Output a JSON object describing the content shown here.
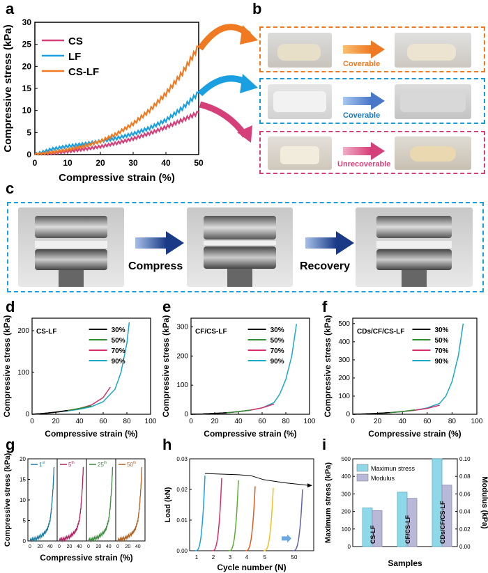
{
  "panel_labels": {
    "a": "a",
    "b": "b",
    "c": "c",
    "d": "d",
    "e": "e",
    "f": "f",
    "g": "g",
    "h": "h",
    "i": "i"
  },
  "panel_b": {
    "rows": [
      {
        "label": "Coverable",
        "color": "#f07a22"
      },
      {
        "label": "Coverable",
        "color": "#1a9ad6"
      },
      {
        "label": "Unrecoverable",
        "color": "#d6407a"
      }
    ]
  },
  "panel_c": {
    "step1": "Compress",
    "step2": "Recovery",
    "border": "#1aa0e0"
  },
  "colors": {
    "CS": "#d6407a",
    "LF": "#1aa0e0",
    "CS-LF": "#f07a22",
    "s30": "#000000",
    "s50": "#2e8b2e",
    "s70": "#d6306a",
    "s90": "#1aa8c8"
  },
  "chart_data": [
    {
      "id": "a",
      "type": "line",
      "xlabel": "Compressive strain (%)",
      "ylabel": "Compressive stress (kPa)",
      "xlim": [
        0,
        50
      ],
      "ylim": [
        0,
        30
      ],
      "xticks": [
        "0",
        "10",
        "20",
        "30",
        "40",
        "50"
      ],
      "yticks": [
        "0",
        "5",
        "10",
        "15",
        "20",
        "25",
        "30"
      ],
      "series": [
        {
          "name": "CS",
          "color": "#d6407a",
          "x": [
            0,
            5,
            10,
            15,
            20,
            25,
            30,
            35,
            40,
            45,
            50
          ],
          "y": [
            0,
            0.3,
            0.7,
            1.2,
            1.8,
            2.6,
            3.6,
            4.8,
            6.2,
            7.8,
            9.5
          ]
        },
        {
          "name": "LF",
          "color": "#1aa0e0",
          "x": [
            0,
            5,
            10,
            15,
            20,
            25,
            30,
            35,
            40,
            45,
            50
          ],
          "y": [
            0,
            1.2,
            1.9,
            2.4,
            3.0,
            3.7,
            4.7,
            6.0,
            7.8,
            10.5,
            14
          ]
        },
        {
          "name": "CS-LF",
          "color": "#f07a22",
          "x": [
            0,
            5,
            10,
            15,
            20,
            25,
            30,
            35,
            40,
            45,
            50
          ],
          "y": [
            0,
            0.5,
            1.1,
            1.9,
            3.0,
            4.7,
            7.0,
            10.0,
            13.8,
            18.5,
            24.5
          ]
        }
      ]
    },
    {
      "id": "d",
      "type": "line",
      "title": "CS-LF",
      "xlabel": "Compressive strain (%)",
      "ylabel": "Compressive stress (kPa)",
      "xlim": [
        0,
        100
      ],
      "ylim": [
        0,
        230
      ],
      "xticks": [
        "0",
        "20",
        "40",
        "60",
        "80",
        "100"
      ],
      "yticks": [
        "0",
        "100",
        "200"
      ],
      "ytickvals": [
        0,
        100,
        200
      ],
      "series": [
        {
          "name": "30%",
          "color": "#000000",
          "x": [
            0,
            10,
            20,
            30
          ],
          "y": [
            0,
            2,
            5,
            9
          ]
        },
        {
          "name": "50%",
          "color": "#2e8b2e",
          "x": [
            0,
            10,
            20,
            30,
            40,
            50
          ],
          "y": [
            0,
            2,
            5,
            9,
            14,
            20
          ]
        },
        {
          "name": "70%",
          "color": "#d6306a",
          "x": [
            0,
            10,
            20,
            30,
            40,
            50,
            60,
            66
          ],
          "y": [
            0,
            2,
            5,
            9,
            14,
            22,
            40,
            65
          ]
        },
        {
          "name": "90%",
          "color": "#1aa8c8",
          "x": [
            0,
            10,
            20,
            30,
            40,
            50,
            60,
            70,
            75,
            80,
            82
          ],
          "y": [
            0,
            2,
            5,
            8,
            12,
            18,
            30,
            60,
            100,
            170,
            220
          ]
        }
      ]
    },
    {
      "id": "e",
      "type": "line",
      "title": "CF/CS-LF",
      "xlabel": "Compressive strain (%)",
      "ylabel": "Compressive stress (kPa)",
      "xlim": [
        0,
        100
      ],
      "ylim": [
        0,
        330
      ],
      "xticks": [
        "0",
        "20",
        "40",
        "60",
        "80",
        "100"
      ],
      "yticks": [
        "0",
        "100",
        "200",
        "300"
      ],
      "ytickvals": [
        0,
        100,
        200,
        300
      ],
      "series": [
        {
          "name": "30%",
          "color": "#000000",
          "x": [
            0,
            10,
            20,
            30
          ],
          "y": [
            0,
            1,
            3,
            5
          ]
        },
        {
          "name": "50%",
          "color": "#2e8b2e",
          "x": [
            0,
            10,
            20,
            30,
            40,
            50
          ],
          "y": [
            0,
            1,
            3,
            5,
            9,
            14
          ]
        },
        {
          "name": "70%",
          "color": "#d6306a",
          "x": [
            0,
            10,
            20,
            30,
            40,
            50,
            60,
            70
          ],
          "y": [
            0,
            1,
            3,
            5,
            9,
            14,
            22,
            35
          ]
        },
        {
          "name": "90%",
          "color": "#1aa8c8",
          "x": [
            0,
            10,
            20,
            30,
            40,
            50,
            60,
            70,
            75,
            80,
            85,
            89
          ],
          "y": [
            0,
            1,
            3,
            5,
            9,
            14,
            22,
            40,
            70,
            120,
            200,
            310
          ]
        }
      ]
    },
    {
      "id": "f",
      "type": "line",
      "title": "CDs/CF/CS-LF",
      "xlabel": "Compressive strain (%)",
      "ylabel": "Compressive stress (kPa)",
      "xlim": [
        0,
        100
      ],
      "ylim": [
        0,
        530
      ],
      "xticks": [
        "0",
        "20",
        "40",
        "60",
        "80",
        "100"
      ],
      "yticks": [
        "0",
        "100",
        "200",
        "300",
        "400",
        "500"
      ],
      "ytickvals": [
        0,
        100,
        200,
        300,
        400,
        500
      ],
      "series": [
        {
          "name": "30%",
          "color": "#000000",
          "x": [
            0,
            10,
            20,
            30
          ],
          "y": [
            0,
            2,
            5,
            9
          ]
        },
        {
          "name": "50%",
          "color": "#2e8b2e",
          "x": [
            0,
            10,
            20,
            30,
            40,
            50
          ],
          "y": [
            0,
            2,
            5,
            9,
            15,
            24
          ]
        },
        {
          "name": "70%",
          "color": "#d6306a",
          "x": [
            0,
            10,
            20,
            30,
            40,
            50,
            60,
            70
          ],
          "y": [
            0,
            2,
            5,
            9,
            15,
            22,
            32,
            50
          ]
        },
        {
          "name": "90%",
          "color": "#1aa8c8",
          "x": [
            0,
            10,
            20,
            30,
            40,
            50,
            60,
            70,
            75,
            80,
            85,
            89
          ],
          "y": [
            0,
            2,
            5,
            9,
            15,
            22,
            35,
            60,
            100,
            180,
            320,
            500
          ]
        }
      ]
    },
    {
      "id": "g",
      "type": "line",
      "xlabel": "Compressive strain (%)",
      "ylabel": "Compressive stress (kPa)",
      "ylim": [
        0,
        20
      ],
      "yticks": [
        "0",
        "5",
        "10",
        "15",
        "20"
      ],
      "xticks": [
        "0",
        "20",
        "40"
      ],
      "panels": [
        {
          "name": "1st",
          "sup": "st",
          "base": "1",
          "color": "#1a7aa0"
        },
        {
          "name": "5th",
          "sup": "th",
          "base": "5",
          "color": "#b02060"
        },
        {
          "name": "25th",
          "sup": "th",
          "base": "25",
          "color": "#3a8a3a"
        },
        {
          "name": "50th",
          "sup": "th",
          "base": "50",
          "color": "#b06020"
        }
      ],
      "x": [
        0,
        10,
        20,
        30,
        35,
        40,
        43,
        46,
        48
      ],
      "y": [
        0.2,
        0.5,
        1,
        2,
        3,
        5,
        8,
        13,
        18
      ]
    },
    {
      "id": "h",
      "type": "line",
      "xlabel": "Cycle number (N)",
      "ylabel": "Load (kN)",
      "ylim": [
        0,
        0.03
      ],
      "yticks": [
        "0.00",
        "0.01",
        "0.02",
        "0.03"
      ],
      "cycles": [
        "1",
        "2",
        "3",
        "4",
        "5",
        "50"
      ],
      "series": [
        {
          "name": "1",
          "color": "#1aa0e0",
          "peak": 0.0245
        },
        {
          "name": "2",
          "color": "#d6306a",
          "peak": 0.0237
        },
        {
          "name": "3",
          "color": "#5ab030",
          "peak": 0.023
        },
        {
          "name": "4",
          "color": "#e05a20",
          "peak": 0.021
        },
        {
          "name": "5",
          "color": "#f0c020",
          "peak": 0.0205
        },
        {
          "name": "50",
          "color": "#6060b0",
          "peak": 0.02
        }
      ]
    },
    {
      "id": "i",
      "type": "bar",
      "xlabel": "Samples",
      "ylabel": "Maximum stress (kPa)",
      "y2label": "Modulus (kPa)",
      "categories": [
        "CS-LF",
        "CF/CS-LF",
        "CDs/CF/CS-LF"
      ],
      "ylim": [
        0,
        500
      ],
      "y2lim": [
        0,
        0.1
      ],
      "yticks": [
        "0",
        "100",
        "200",
        "300",
        "400",
        "500"
      ],
      "y2ticks": [
        "0.00",
        "0.02",
        "0.04",
        "0.06",
        "0.08",
        "0.10"
      ],
      "series": [
        {
          "name": "Maximun stress",
          "color": "#8ed8e8",
          "values": [
            220,
            310,
            500
          ]
        },
        {
          "name": "Modulus",
          "color": "#b8b8d8",
          "values": [
            0.041,
            0.055,
            0.07
          ]
        }
      ]
    }
  ]
}
